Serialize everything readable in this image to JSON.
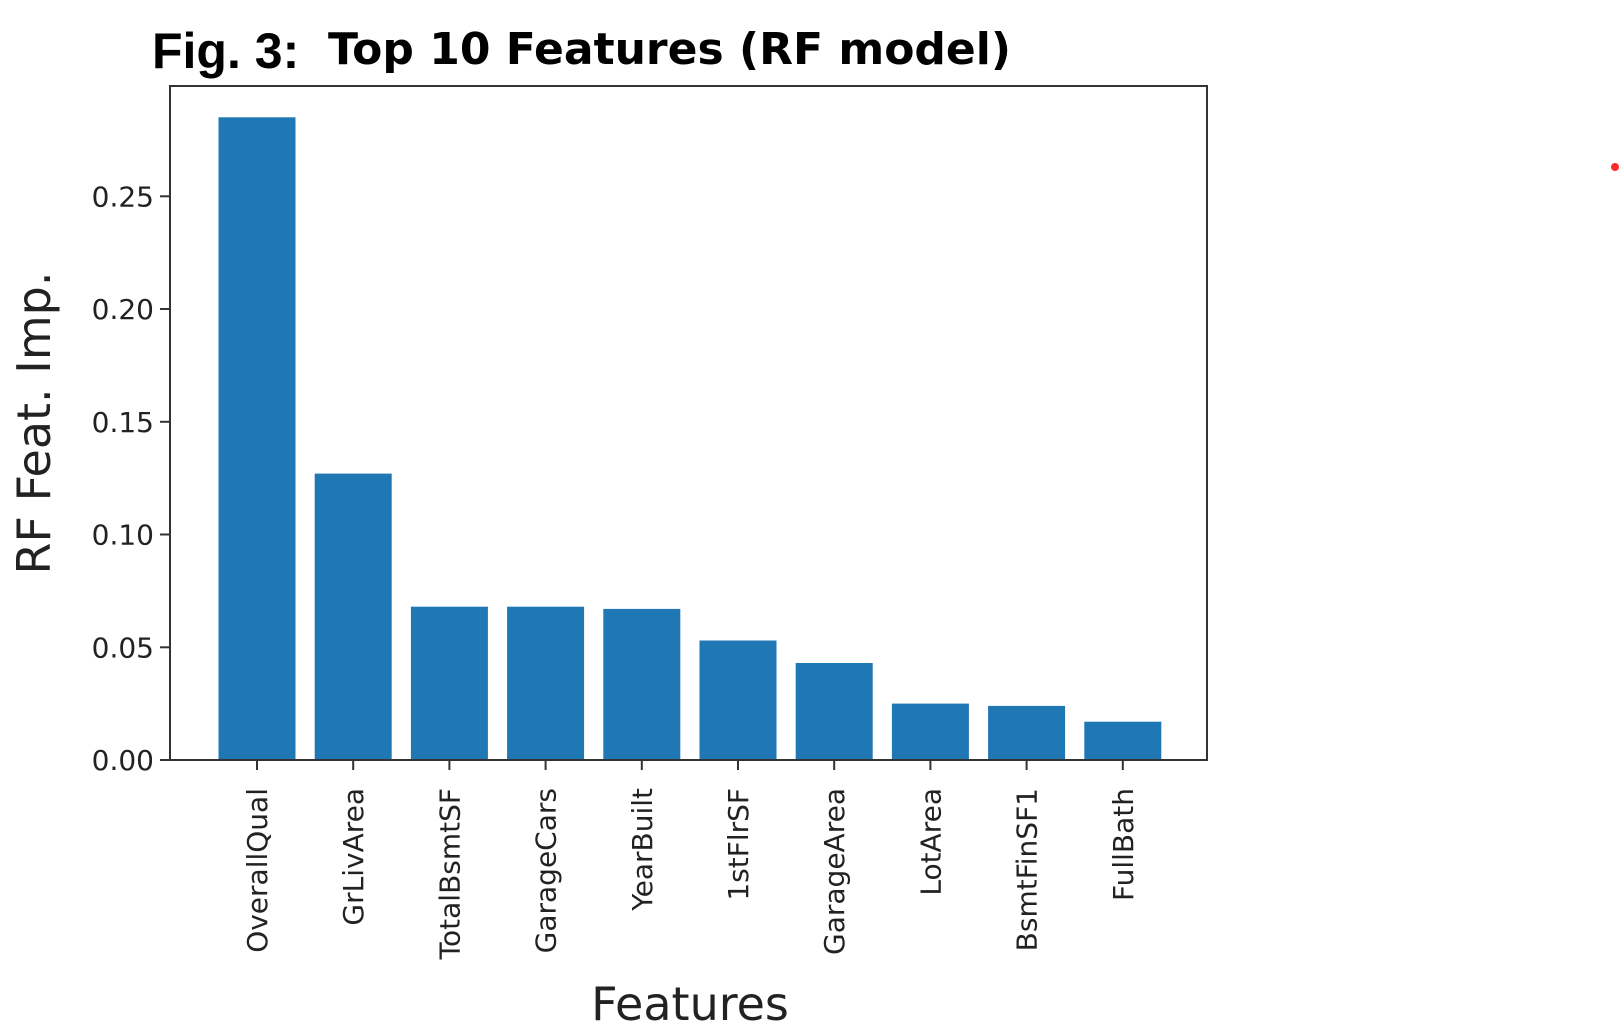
{
  "chart_data": {
    "type": "bar",
    "title_prefix": "Fig. 3:",
    "title": "Top 10 Features (RF model)",
    "xlabel": "Features",
    "ylabel": "RF Feat. Imp.",
    "categories": [
      "OverallQual",
      "GrLivArea",
      "TotalBsmtSF",
      "GarageCars",
      "YearBuilt",
      "1stFlrSF",
      "GarageArea",
      "LotArea",
      "BsmtFinSF1",
      "FullBath"
    ],
    "values": [
      0.285,
      0.127,
      0.068,
      0.068,
      0.067,
      0.053,
      0.043,
      0.025,
      0.024,
      0.017
    ],
    "yticks": [
      "0.00",
      "0.05",
      "0.10",
      "0.15",
      "0.20",
      "0.25"
    ],
    "ylim": [
      0,
      0.3
    ],
    "grid": false,
    "bar_color": "#1f77b4",
    "marker_color": "#ff2a2a"
  }
}
